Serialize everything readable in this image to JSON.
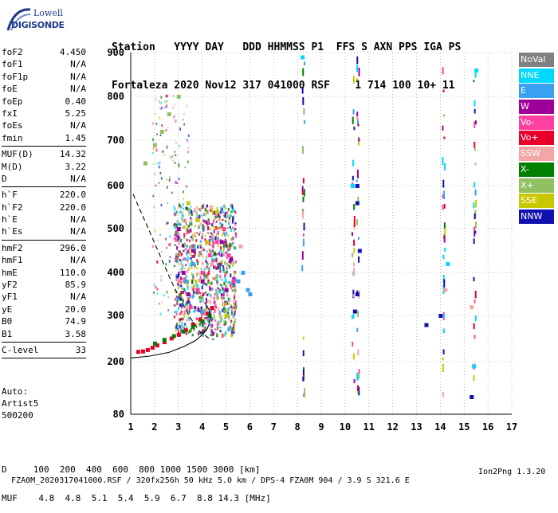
{
  "logo": {
    "line1": "Lowell",
    "line2": "DIGISONDE"
  },
  "header": {
    "row1": "Station   YYYY DAY   DDD HHMMSS P1  FFS S AXN PPS IGA PS",
    "row2": "Fortaleza 2020 Nov12 317 041000 RSF    1 714 100 10+ 11"
  },
  "params": [
    [
      [
        "foF2",
        "4.450"
      ],
      [
        "foF1",
        "N/A"
      ],
      [
        "foF1p",
        "N/A"
      ],
      [
        "foE",
        "N/A"
      ],
      [
        "foEp",
        "0.40"
      ],
      [
        "fxI",
        "5.25"
      ],
      [
        "foEs",
        "N/A"
      ],
      [
        "fmin",
        "1.45"
      ]
    ],
    [
      [
        "MUF(D)",
        "14.32"
      ],
      [
        "M(D)",
        "3.22"
      ],
      [
        "D",
        "N/A"
      ]
    ],
    [
      [
        "h`F",
        "220.0"
      ],
      [
        "h`F2",
        "220.0"
      ],
      [
        "h`E",
        "N/A"
      ],
      [
        "h`Es",
        "N/A"
      ]
    ],
    [
      [
        "hmF2",
        "296.0"
      ],
      [
        "hmF1",
        "N/A"
      ],
      [
        "hmE",
        "110.0"
      ],
      [
        "yF2",
        "85.9"
      ],
      [
        "yF1",
        "N/A"
      ],
      [
        "yE",
        "20.0"
      ],
      [
        "B0",
        "74.9"
      ],
      [
        "B1",
        "3.58"
      ]
    ],
    [
      [
        "C-level",
        "33"
      ]
    ]
  ],
  "auto": {
    "line1": "Auto:",
    "line2": "Artist5",
    "line3": "500200"
  },
  "legend": [
    {
      "label": "NoVal",
      "color": "#808080"
    },
    {
      "label": "NNE",
      "color": "#00d8ff"
    },
    {
      "label": "E",
      "color": "#3aa0f0"
    },
    {
      "label": "W",
      "color": "#a0009a"
    },
    {
      "label": "Vo-",
      "color": "#ff40a0"
    },
    {
      "label": "Vo+",
      "color": "#e8002a"
    },
    {
      "label": "SSW",
      "color": "#f4a6a6"
    },
    {
      "label": "X-",
      "color": "#008000"
    },
    {
      "label": "X+",
      "color": "#90c060"
    },
    {
      "label": "SSE",
      "color": "#c8c800"
    },
    {
      "label": "NNW",
      "color": "#1010b0"
    }
  ],
  "chart_data": {
    "type": "scatter",
    "x_ticks": [
      "1",
      "2",
      "3",
      "4",
      "5",
      "6",
      "7",
      "8",
      "9",
      "10",
      "11",
      "12",
      "13",
      "14",
      "15",
      "16",
      "17"
    ],
    "y_ticks": [
      "80",
      "200",
      "300",
      "400",
      "500",
      "600",
      "700",
      "800",
      "900"
    ],
    "xlim": [
      1,
      17
    ],
    "ylim": [
      80,
      900
    ],
    "grid": "dotted",
    "legend_position": "right",
    "series": [
      {
        "name": "Vo+",
        "color": "#e8002a",
        "x": [
          1.3,
          1.5,
          1.7,
          1.9,
          2.1,
          2.4,
          2.7,
          3.0,
          3.3,
          3.6,
          3.9,
          4.2,
          4.4
        ],
        "y": [
          222,
          223,
          226,
          231,
          236,
          243,
          251,
          259,
          269,
          281,
          292,
          305,
          318
        ]
      },
      {
        "name": "Vo-",
        "color": "#ff40a0",
        "x": [
          3.5,
          3.8,
          4.0,
          4.3,
          4.6,
          4.9,
          5.1,
          5.3
        ],
        "y": [
          320,
          360,
          400,
          440,
          470,
          500,
          440,
          380
        ]
      },
      {
        "name": "W",
        "color": "#a0009a",
        "x": [
          3.2,
          3.6,
          4.0,
          4.4,
          4.8,
          5.0,
          5.2,
          3.0,
          3.4
        ],
        "y": [
          400,
          450,
          380,
          420,
          470,
          360,
          430,
          500,
          350
        ]
      },
      {
        "name": "E",
        "color": "#3aa0f0",
        "x": [
          3.0,
          3.3,
          3.6,
          4.0,
          5.5,
          5.7,
          5.9,
          6.0
        ],
        "y": [
          340,
          380,
          420,
          310,
          380,
          400,
          360,
          350
        ]
      },
      {
        "name": "X-",
        "color": "#008000",
        "x": [
          2.0,
          2.4,
          2.8,
          3.2,
          3.6,
          4.0,
          4.3
        ],
        "y": [
          240,
          248,
          256,
          266,
          276,
          288,
          300
        ]
      },
      {
        "name": "X+",
        "color": "#90c060",
        "x": [
          1.6,
          2.0,
          2.3,
          2.6,
          3.0
        ],
        "y": [
          650,
          690,
          720,
          760,
          800
        ]
      },
      {
        "name": "NNW",
        "color": "#1010b0",
        "x": [
          10.5,
          10.5,
          10.5,
          10.4,
          10.6,
          14.0,
          15.3,
          13.4
        ],
        "y": [
          560,
          600,
          350,
          310,
          450,
          300,
          120,
          280
        ]
      },
      {
        "name": "NNE",
        "color": "#00d8ff",
        "x": [
          8.2,
          10.3,
          14.3,
          15.4,
          15.5
        ],
        "y": [
          890,
          600,
          420,
          190,
          860
        ]
      },
      {
        "name": "SSE",
        "color": "#c8c800",
        "x": [
          3.8,
          4.2,
          4.6,
          5.0,
          3.4
        ],
        "y": [
          520,
          470,
          540,
          300,
          560
        ]
      },
      {
        "name": "SSW",
        "color": "#f4a6a6",
        "x": [
          4.4,
          5.6,
          14.2,
          15.3
        ],
        "y": [
          420,
          460,
          360,
          320
        ]
      }
    ],
    "curves": [
      {
        "name": "profile",
        "style": "solid",
        "x": [
          1.0,
          1.8,
          2.6,
          3.2,
          3.7,
          4.0,
          4.2,
          4.3,
          4.35,
          4.3,
          4.1
        ],
        "y": [
          208,
          212,
          220,
          232,
          245,
          258,
          270,
          282,
          296,
          312,
          330
        ]
      },
      {
        "name": "trace",
        "style": "dashed",
        "x": [
          1.1,
          1.5,
          1.9,
          2.3,
          2.7,
          3.1,
          3.5,
          3.9,
          4.3,
          4.5
        ],
        "y": [
          580,
          530,
          480,
          430,
          380,
          335,
          295,
          265,
          250,
          248
        ]
      }
    ]
  },
  "bottom": {
    "row1": "D     100  200  400  600  800 1000 1500 3000 [km]",
    "row2": "MUF    4.8  4.8  5.1  5.4  5.9  6.7  8.8 14.3 [MHz]"
  },
  "footer": {
    "text": "FZA0M_2020317041000.RSF / 320fx256h 50 kHz 5.0 km / DPS-4 FZA0M 904 / 3.9 S 321.6 E",
    "version": "Ion2Png 1.3.20"
  }
}
